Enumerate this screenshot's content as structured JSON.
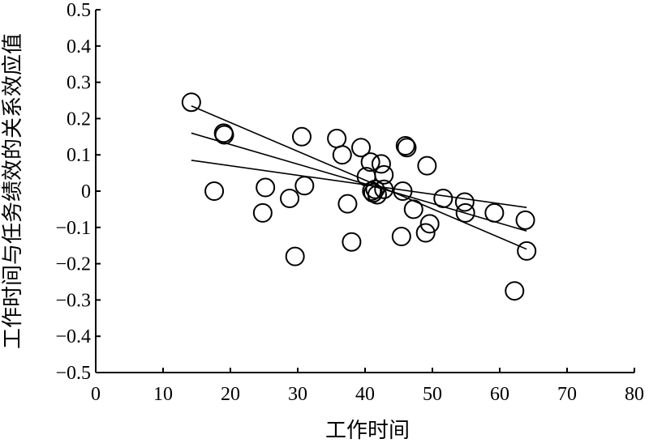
{
  "chart_data": {
    "type": "scatter",
    "xlabel": "工作时间",
    "ylabel": "工作时间与任务绩效的关系效应值",
    "xlim": [
      0,
      80
    ],
    "ylim": [
      -0.5,
      0.5
    ],
    "x_ticks": [
      0,
      10,
      20,
      30,
      40,
      50,
      60,
      70,
      80
    ],
    "y_ticks": [
      0.5,
      0.4,
      0.3,
      0.2,
      0.1,
      0,
      -0.1,
      -0.2,
      -0.3,
      -0.4,
      -0.5
    ],
    "x_tick_labels": [
      "0",
      "10",
      "20",
      "30",
      "40",
      "50",
      "60",
      "70",
      "80"
    ],
    "y_tick_labels": [
      "0.5",
      "0.4",
      "0.3",
      "0.2",
      "0.1",
      "0",
      "−0.1",
      "−0.2",
      "−0.3",
      "−0.4",
      "−0.5"
    ],
    "grid": false,
    "series": [
      {
        "points": [
          [
            14.2,
            0.245
          ],
          [
            17.6,
            0.0
          ],
          [
            19.0,
            0.16
          ],
          [
            19.1,
            0.155
          ],
          [
            24.8,
            -0.06
          ],
          [
            25.2,
            0.01
          ],
          [
            28.8,
            -0.02
          ],
          [
            29.6,
            -0.18
          ],
          [
            30.6,
            0.15
          ],
          [
            31.0,
            0.015
          ],
          [
            35.8,
            0.145
          ],
          [
            36.6,
            0.1
          ],
          [
            37.4,
            -0.035
          ],
          [
            38.0,
            -0.14
          ],
          [
            39.4,
            0.12
          ],
          [
            40.2,
            0.04
          ],
          [
            40.8,
            0.08
          ],
          [
            41.0,
            0.0
          ],
          [
            41.2,
            -0.005
          ],
          [
            41.5,
            0.005
          ],
          [
            41.8,
            -0.01
          ],
          [
            42.4,
            0.075
          ],
          [
            42.8,
            0.045
          ],
          [
            42.8,
            0.005
          ],
          [
            45.4,
            -0.125
          ],
          [
            45.6,
            0.0
          ],
          [
            46.0,
            0.125
          ],
          [
            46.2,
            0.12
          ],
          [
            47.2,
            -0.05
          ],
          [
            49.0,
            -0.115
          ],
          [
            49.2,
            0.07
          ],
          [
            49.6,
            -0.09
          ],
          [
            51.6,
            -0.02
          ],
          [
            54.8,
            -0.03
          ],
          [
            54.9,
            -0.06
          ],
          [
            59.2,
            -0.06
          ],
          [
            62.2,
            -0.275
          ],
          [
            63.8,
            -0.08
          ],
          [
            64.0,
            -0.165
          ]
        ]
      }
    ],
    "lines": [
      {
        "x": [
          14.2,
          64.0
        ],
        "y": [
          0.235,
          -0.16
        ]
      },
      {
        "x": [
          14.2,
          64.0
        ],
        "y": [
          0.16,
          -0.11
        ]
      },
      {
        "x": [
          14.2,
          64.0
        ],
        "y": [
          0.085,
          -0.045
        ]
      }
    ]
  }
}
